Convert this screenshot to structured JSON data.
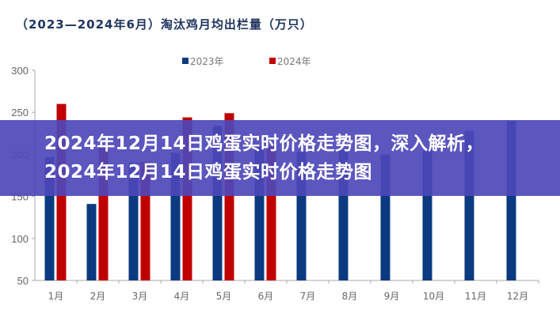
{
  "banner": {
    "headline": "2024年12月14日鸡蛋实时价格走势图，深入解析，2024年12月14日鸡蛋实时价格走势图"
  },
  "chart_data": {
    "type": "bar",
    "title": "（2023—2024年6月）淘汰鸡月均出栏量（万只）",
    "xlabel": "",
    "ylabel": "",
    "categories": [
      "1月",
      "2月",
      "3月",
      "4月",
      "5月",
      "6月",
      "7月",
      "8月",
      "9月",
      "10月",
      "11月",
      "12月"
    ],
    "series": [
      {
        "name": "2023年",
        "color": "#0b3a80",
        "values": [
          197,
          141,
          190,
          202,
          234,
          210,
          203,
          205,
          200,
          205,
          228,
          240
        ]
      },
      {
        "name": "2024年",
        "color": "#c00000",
        "values": [
          260,
          210,
          191,
          244,
          249,
          210,
          null,
          null,
          null,
          null,
          null,
          null
        ]
      }
    ],
    "ylim": [
      50,
      300
    ],
    "yticks": [
      50,
      100,
      150,
      200,
      250,
      300
    ],
    "grid": false,
    "legend": "top-center"
  }
}
